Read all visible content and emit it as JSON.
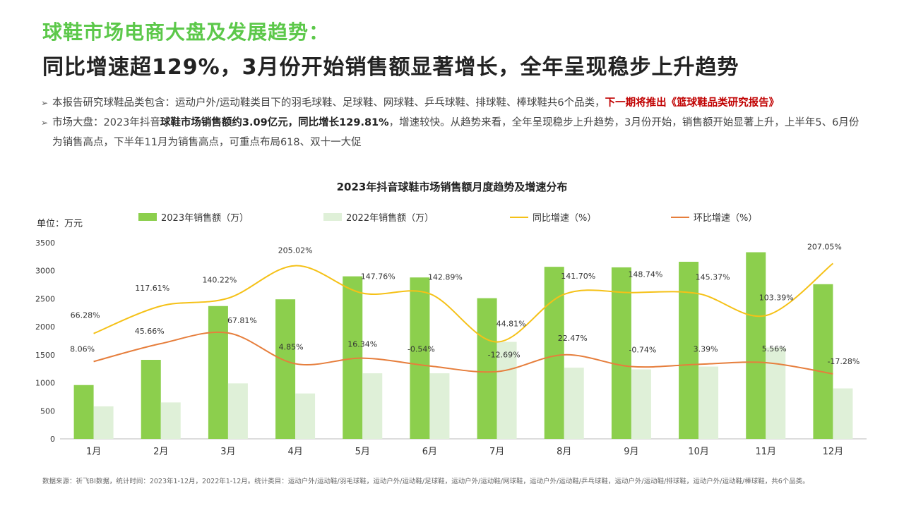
{
  "header": {
    "title": "球鞋市场电商大盘及发展趋势：",
    "subtitle": "同比增速超129%，3月份开始销售额显著增长，全年呈现稳步上升趋势"
  },
  "bullets": {
    "b1_text": "本报告研究球鞋品类包含：运动户外/运动鞋类目下的羽毛球鞋、足球鞋、网球鞋、乒乓球鞋、排球鞋、棒球鞋共6个品类，",
    "b1_red": "下一期将推出《篮球鞋品类研究报告》",
    "b2_a": "市场大盘：2023年抖音",
    "b2_b": "球鞋市场销售额约3.09亿元，同比增长129.81%",
    "b2_c": "，增速较快。从趋势来看，全年呈现稳步上升趋势，3月份开始，销售额开始显著上升，上半年5、6月份为销售高点，下半年11月为销售高点，可重点布局618、双十一大促"
  },
  "colors": {
    "accent_green": "#5cc84a",
    "bar_2023": "#8ccf4d",
    "bar_2022": "#dff0d8",
    "line_yoy": "#f5c117",
    "line_mom": "#e67e3c",
    "red": "#c00000"
  },
  "chart_data": {
    "type": "bar",
    "title": "2023年抖音球鞋市场销售额月度趋势及增速分布",
    "unit_label": "单位：万元",
    "categories": [
      "1月",
      "2月",
      "3月",
      "4月",
      "5月",
      "6月",
      "7月",
      "8月",
      "9月",
      "10月",
      "11月",
      "12月"
    ],
    "ylim": [
      0,
      3500
    ],
    "yticks": [
      0,
      500,
      1000,
      1500,
      2000,
      2500,
      3000,
      3500
    ],
    "series": [
      {
        "name": "2023年销售额（万）",
        "type": "bar",
        "values": [
          960,
          1410,
          2370,
          2490,
          2900,
          2880,
          2510,
          3070,
          3060,
          3160,
          3330,
          2760
        ]
      },
      {
        "name": "2022年销售额（万）",
        "type": "bar",
        "values": [
          580,
          650,
          990,
          810,
          1170,
          1170,
          1730,
          1270,
          1240,
          1290,
          1630,
          900
        ]
      },
      {
        "name": "同比增速（%）",
        "type": "line",
        "labels": [
          "66.28%",
          "117.61%",
          "140.22%",
          "205.02%",
          "147.76%",
          "142.89%",
          "44.81%",
          "141.70%",
          "148.74%",
          "145.37%",
          "103.39%",
          "207.05%"
        ],
        "plot_y": [
          1880,
          2370,
          2510,
          3090,
          2600,
          2590,
          1730,
          2580,
          2610,
          2590,
          2200,
          3130
        ]
      },
      {
        "name": "环比增速（%）",
        "type": "line",
        "labels": [
          "8.06%",
          "45.66%",
          "67.81%",
          "4.85%",
          "16.34%",
          "-0.54%",
          "-12.69%",
          "22.47%",
          "-0.74%",
          "3.39%",
          "5.56%",
          "-17.28%"
        ],
        "plot_y": [
          1380,
          1700,
          1890,
          1340,
          1440,
          1300,
          1200,
          1500,
          1290,
          1330,
          1360,
          1160
        ]
      }
    ],
    "grid": false,
    "legend_position": "top"
  },
  "footer": {
    "source": "数据来源：祈飞BI数据，统计时间：2023年1-12月，2022年1-12月。统计类目：运动户外/运动鞋/羽毛球鞋，运动户外/运动鞋/足球鞋，运动户外/运动鞋/网球鞋，运动户外/运动鞋/乒乓球鞋，运动户外/运动鞋/排球鞋，运动户外/运动鞋/棒球鞋，共6个品类。"
  }
}
